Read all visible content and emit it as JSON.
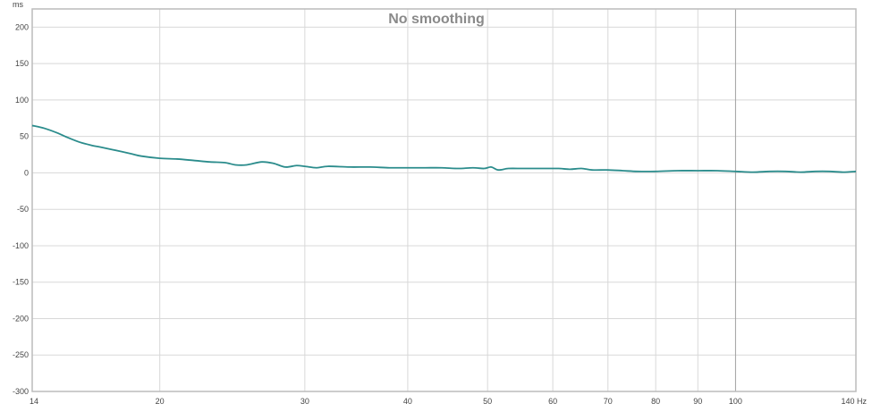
{
  "chart_data": {
    "type": "line",
    "title": "No smoothing",
    "ylabel": "ms",
    "xunit": "Hz",
    "xscale": "log",
    "xlim": [
      14,
      140
    ],
    "ylim": [
      -300,
      225
    ],
    "grid": true,
    "xticks": [
      14,
      20,
      30,
      40,
      50,
      60,
      70,
      80,
      90,
      100,
      140
    ],
    "xtick_labels": [
      "14",
      "20",
      "30",
      "40",
      "50",
      "60",
      "70",
      "80",
      "90",
      "100",
      "140 Hz"
    ],
    "yticks": [
      200,
      150,
      100,
      50,
      0,
      -50,
      -100,
      -150,
      -200,
      -250,
      -300
    ],
    "ytick_labels": [
      "200",
      "150",
      "100",
      "50",
      "0",
      "-50",
      "-100",
      "-150",
      "-200",
      "-250",
      "-300"
    ],
    "colors": {
      "line": "#2b8c8c",
      "grid": "#d8d8d8",
      "cursor": "#a0a0a0"
    },
    "series": [
      {
        "x": [
          14,
          14.5,
          15,
          15.5,
          16,
          16.5,
          17,
          17.5,
          18,
          18.5,
          19,
          20,
          21,
          22,
          23,
          24,
          24.7,
          25.5,
          26.6,
          27.5,
          28.4,
          29.3,
          30,
          31,
          32,
          34,
          36,
          38,
          40,
          42,
          44,
          46,
          48,
          49.5,
          50.5,
          51.5,
          53,
          55,
          57,
          59,
          61,
          63,
          65,
          67,
          70,
          73,
          76,
          80,
          85,
          90,
          95,
          100,
          105,
          110,
          115,
          120,
          125,
          130,
          135,
          140
        ],
        "y": [
          65,
          61,
          55,
          48,
          42,
          38,
          35,
          32,
          29,
          26,
          23,
          20,
          19,
          17,
          15,
          14,
          11,
          11,
          15,
          13,
          8,
          10,
          9,
          7,
          9,
          8,
          8,
          7,
          7,
          7,
          7,
          6,
          7,
          6,
          8,
          4,
          6,
          6,
          6,
          6,
          6,
          5,
          6,
          4,
          4,
          3,
          2,
          2,
          3,
          3,
          3,
          2,
          1,
          2,
          2,
          1,
          2,
          2,
          1,
          2
        ]
      }
    ]
  }
}
